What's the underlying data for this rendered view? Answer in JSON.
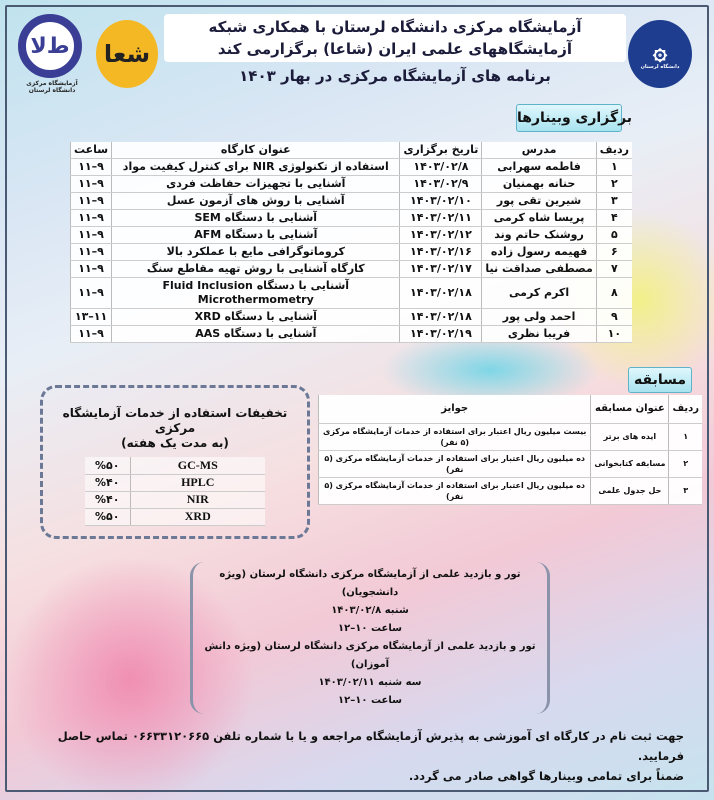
{
  "header": {
    "line1": "آزمایشگاه مرکزی دانشگاه لرستان با همکاری شبکه",
    "line2": "آزمایشگاههای علمی ایران (شاعا) برگزارمی کند",
    "subtitle": "برنامه های آزمایشگاه مرکزی در بهار ۱۴۰۳"
  },
  "logos": {
    "lab_caption": "آزمایشگاه مرکزی دانشگاه لرستان",
    "university_caption": "دانشگاه لرستان"
  },
  "webinars": {
    "section_title": "برگزاری وبینارها",
    "columns": [
      "ردیف",
      "مدرس",
      "تاریخ برگزاری",
      "عنوان کارگاه",
      "ساعت"
    ],
    "rows": [
      [
        "۱",
        "فاطمه سهرابی",
        "۱۴۰۳/۰۲/۸",
        "استفاده از تکنولوژی NIR برای کنترل کیفیت مواد",
        "۹–۱۱"
      ],
      [
        "۲",
        "حنانه بهمنیان",
        "۱۴۰۳/۰۲/۹",
        "آشنایی با تجهیزات حفاظت فردی",
        "۹–۱۱"
      ],
      [
        "۳",
        "شیرین تقی پور",
        "۱۴۰۳/۰۲/۱۰",
        "آشنایی با روش های آزمون عسل",
        "۹–۱۱"
      ],
      [
        "۴",
        "پریسا شاه کرمی",
        "۱۴۰۳/۰۲/۱۱",
        "آشنایی با دستگاه SEM",
        "۹–۱۱"
      ],
      [
        "۵",
        "روشنک حاتم وند",
        "۱۴۰۳/۰۲/۱۲",
        "آشنایی با دستگاه AFM",
        "۹–۱۱"
      ],
      [
        "۶",
        "فهیمه رسول زاده",
        "۱۴۰۳/۰۲/۱۶",
        "کروماتوگرافی مایع با عملکرد بالا",
        "۹–۱۱"
      ],
      [
        "۷",
        "مصطفی صداقت نیا",
        "۱۴۰۳/۰۲/۱۷",
        "کارگاه آشنایی با روش تهیه مقاطع سنگ",
        "۹–۱۱"
      ],
      [
        "۸",
        "اکرم کرمی",
        "۱۴۰۳/۰۲/۱۸",
        "آشنایی با دستگاه Fluid Inclusion Microthermometry",
        "۹–۱۱"
      ],
      [
        "۹",
        "احمد ولی پور",
        "۱۴۰۳/۰۲/۱۸",
        "آشنایی با دستگاه XRD",
        "۱۱–۱۳"
      ],
      [
        "۱۰",
        "فریبا نظری",
        "۱۴۰۳/۰۲/۱۹",
        "آشنایی با دستگاه AAS",
        "۹–۱۱"
      ]
    ]
  },
  "competition": {
    "section_title": "مسابقه",
    "columns": [
      "ردیف",
      "عنوان مسابقه",
      "جوایز"
    ],
    "rows": [
      [
        "۱",
        "ایده های برتر",
        "بیست میلیون ریال اعتبار برای استفاده از خدمات آزمایشگاه مرکزی (۵ نفر)"
      ],
      [
        "۲",
        "مسابقه کتابخوانی",
        "ده میلیون ریال اعتبار برای استفاده از خدمات آزمایشگاه مرکزی (۵ نفر)"
      ],
      [
        "۳",
        "حل جدول علمی",
        "ده میلیون ریال اعتبار برای استفاده از خدمات آزمایشگاه مرکزی (۵ نفر)"
      ]
    ]
  },
  "discounts": {
    "title": "تخفیفات استفاده از خدمات آزمایشگاه مرکزی",
    "subtitle": "(به مدت یک هفته)",
    "rows": [
      [
        "GC-MS",
        "%۵۰"
      ],
      [
        "HPLC",
        "%۴۰"
      ],
      [
        "NIR",
        "%۴۰"
      ],
      [
        "XRD",
        "%۵۰"
      ]
    ]
  },
  "tours": {
    "lines": [
      "تور و بازدید علمی از آزمایشگاه مرکزی دانشگاه لرستان (ویژه دانشجویان)",
      "شنبه ۱۴۰۳/۰۲/۸",
      "ساعت ۱۰–۱۲",
      "تور و بازدید علمی از آزمایشگاه مرکزی دانشگاه لرستان (ویژه دانش آموزان)",
      "سه شنبه ۱۴۰۳/۰۲/۱۱",
      "ساعت ۱۰–۱۲"
    ]
  },
  "footer": {
    "line1": "جهت ثبت نام در کارگاه ای آموزشی به پذیرش آزمایشگاه مراجعه و یا با شماره تلفن ۰۶۶۳۳۱۲۰۶۶۵ تماس حاصل فرمایید.",
    "line2": "ضمناً برای تمامی وبینارها گواهی صادر می گردد."
  },
  "colors": {
    "frame": "#4b5a73",
    "tag": "#a8e3f0",
    "university_blue": "#1e3d8f",
    "shaa_yellow": "#f4b824",
    "lab_logo_blue": "#3a3e95"
  }
}
